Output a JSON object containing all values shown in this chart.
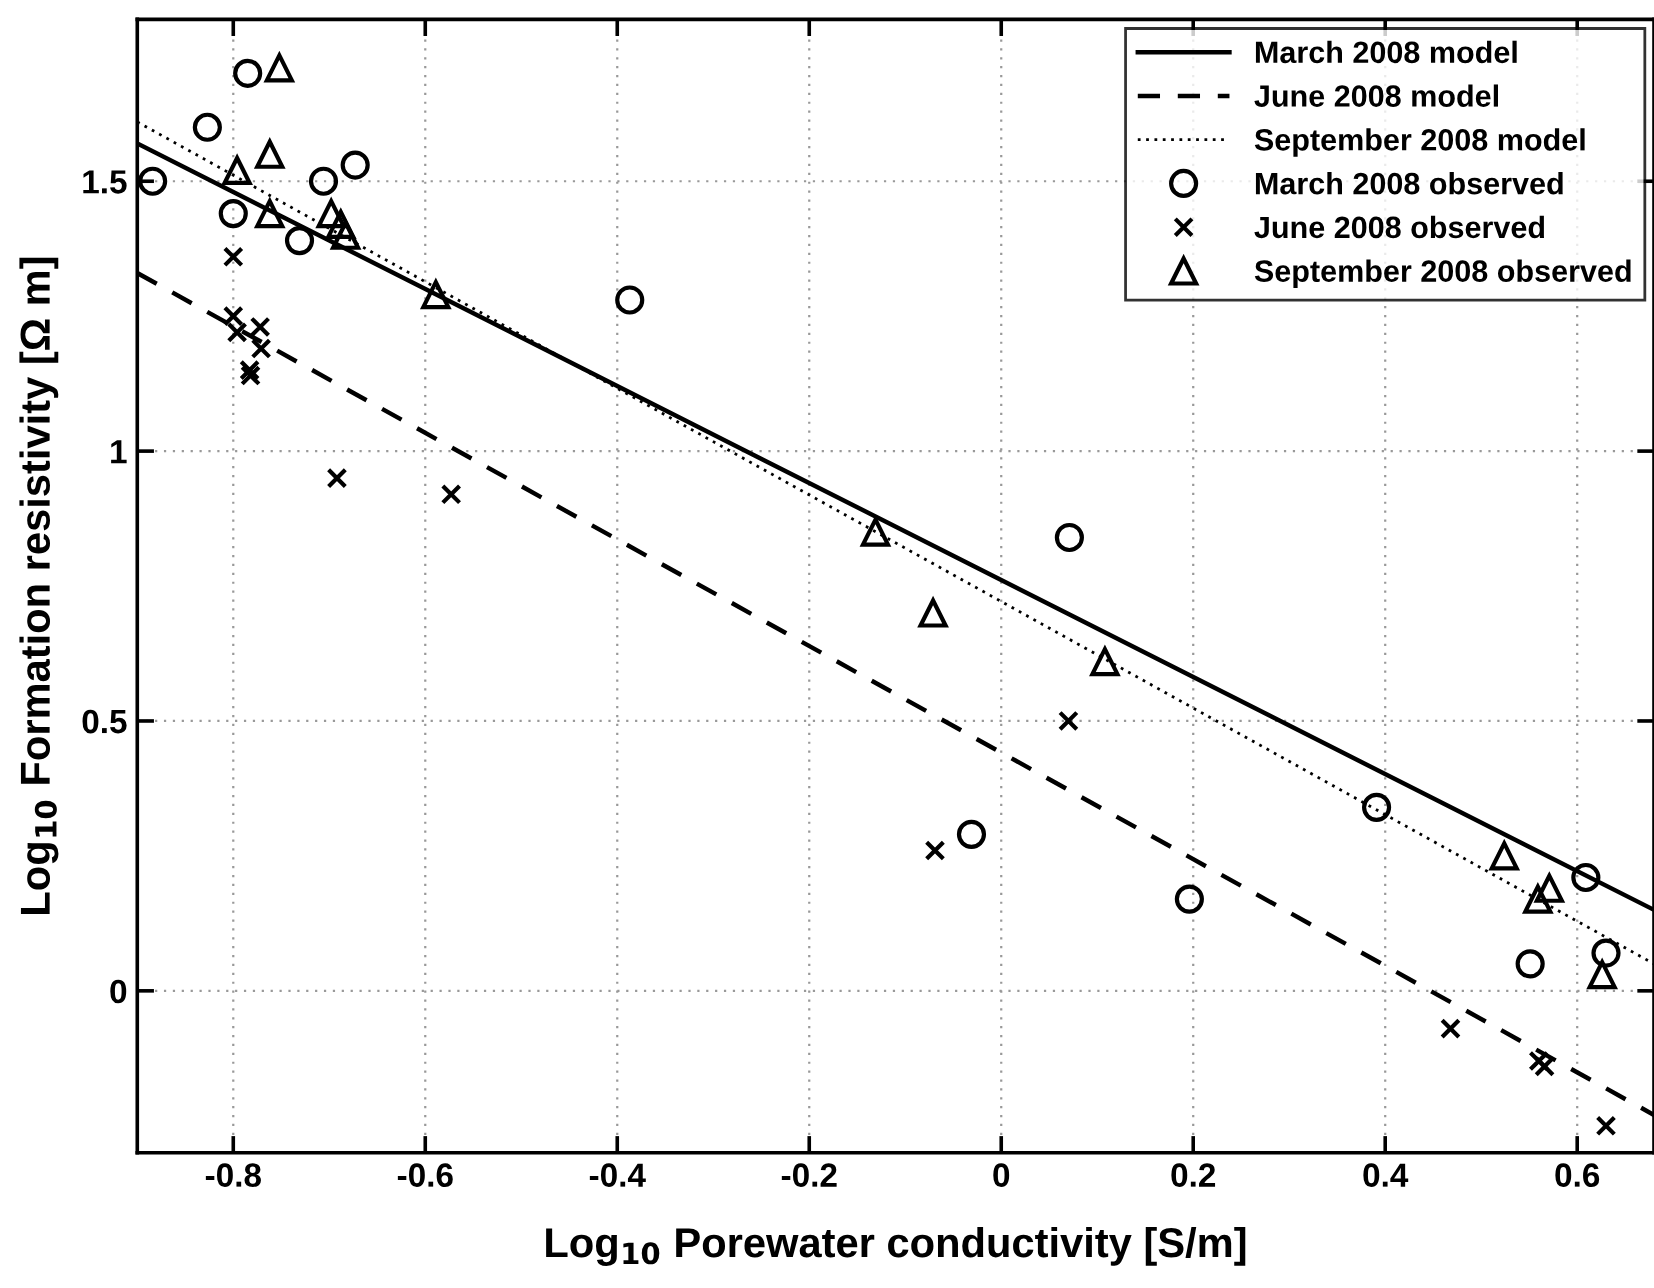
{
  "chart_data": {
    "type": "scatter",
    "xlabel": "Log$_{10}$ Porewater conductivity [S/m]",
    "ylabel": "Log$_{10}$ Formation resistivity [Ω m]",
    "xlim": [
      -0.9,
      0.68
    ],
    "ylim": [
      -0.3,
      1.8
    ],
    "xticks": [
      -0.8,
      -0.6,
      -0.4,
      -0.2,
      0,
      0.2,
      0.4,
      0.6
    ],
    "yticks": [
      0,
      0.5,
      1,
      1.5
    ],
    "grid": true,
    "legend": "top right",
    "series": [
      {
        "name": "March 2008 model",
        "type": "line",
        "line_style": "solid",
        "marker": "none",
        "color": "#000000",
        "x": [
          -0.9,
          0.68
        ],
        "values": [
          1.57,
          0.15
        ]
      },
      {
        "name": "June 2008 model",
        "type": "line",
        "line_style": "dashed",
        "marker": "none",
        "color": "#000000",
        "x": [
          -0.9,
          0.68
        ],
        "values": [
          1.33,
          -0.23
        ]
      },
      {
        "name": "September 2008 model",
        "type": "line",
        "line_style": "dotted",
        "marker": "none",
        "color": "#000000",
        "x": [
          -0.9,
          0.68
        ],
        "values": [
          1.61,
          0.05
        ]
      },
      {
        "name": "March 2008 observed",
        "marker": "circle",
        "color": "#000000",
        "x": [
          -0.884,
          -0.827,
          -0.785,
          -0.8,
          -0.731,
          -0.706,
          -0.673,
          -0.387,
          0.071,
          -0.031,
          0.196,
          0.391,
          0.609,
          0.551,
          0.63
        ],
        "values": [
          1.5,
          1.6,
          1.7,
          1.44,
          1.39,
          1.5,
          1.53,
          1.28,
          0.84,
          0.29,
          0.17,
          0.34,
          0.21,
          0.05,
          0.07
        ]
      },
      {
        "name": "June 2008 observed",
        "marker": "cross",
        "color": "#000000",
        "x": [
          -0.8,
          -0.8,
          -0.796,
          -0.772,
          -0.771,
          -0.783,
          -0.782,
          -0.692,
          -0.573,
          -0.069,
          0.07,
          0.468,
          0.56,
          0.566,
          0.63
        ],
        "values": [
          1.36,
          1.25,
          1.22,
          1.23,
          1.19,
          1.15,
          1.14,
          0.95,
          0.92,
          0.26,
          0.5,
          -0.07,
          -0.13,
          -0.14,
          -0.25
        ]
      },
      {
        "name": "September 2008 observed",
        "marker": "triangle",
        "color": "#000000",
        "x": [
          -0.752,
          -0.796,
          -0.762,
          -0.762,
          -0.698,
          -0.688,
          -0.683,
          -0.589,
          -0.071,
          -0.131,
          0.108,
          0.524,
          0.571,
          0.559,
          0.626
        ],
        "values": [
          1.71,
          1.52,
          1.55,
          1.44,
          1.44,
          1.42,
          1.4,
          1.29,
          0.7,
          0.85,
          0.61,
          0.25,
          0.19,
          0.17,
          0.03
        ]
      }
    ]
  }
}
